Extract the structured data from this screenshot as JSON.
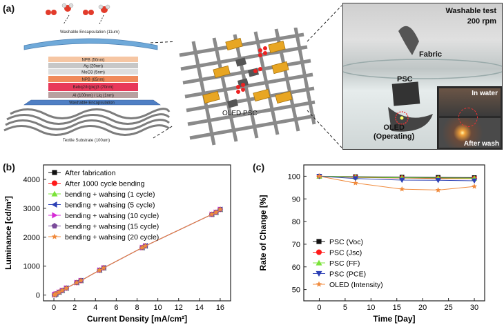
{
  "panels": {
    "a": {
      "label": "(a)",
      "stack": {
        "top_label": "Washable Encapsulation (11um)",
        "layers": [
          "NPB (50nm)",
          "Ag (20nm)",
          "MoO3 (5nm)",
          "NPB (65nm)",
          "Bebq2/Ir(piq)3 (70nm)",
          "Al (100nm) / Liq (1nm)",
          "Washable Encapsulation"
        ],
        "bottom_label": "Textile Substrate (100um)"
      },
      "textile_labels": {
        "oled": "OLED",
        "psc": "PSC"
      },
      "photo": {
        "title_line1": "Washable test",
        "title_line2": "200 rpm",
        "fabric": "Fabric",
        "psc": "PSC",
        "oled_line1": "OLED",
        "oled_line2": "(Operating)",
        "inset_in_water": "In water",
        "inset_after_wash": "After wash"
      }
    },
    "b": {
      "label": "(b)"
    },
    "c": {
      "label": "(c)"
    }
  },
  "chart_data": [
    {
      "type": "line",
      "panel": "b",
      "xlabel": "Current Density [mA/cm²]",
      "ylabel": "Luminance [cd/m²]",
      "xlim": [
        -1,
        17
      ],
      "ylim": [
        -200,
        4500
      ],
      "xticks": [
        0,
        2,
        4,
        6,
        8,
        10,
        12,
        14,
        16
      ],
      "yticks": [
        0,
        1000,
        2000,
        3000,
        4000
      ],
      "legend_position": "top-left",
      "x": [
        0.05,
        0.1,
        0.2,
        0.5,
        0.8,
        1.2,
        2.2,
        2.6,
        4.4,
        4.8,
        8.5,
        8.8,
        15.2,
        15.6,
        16.0
      ],
      "series": [
        {
          "name": "After fabrication",
          "color": "#111111",
          "marker": "square",
          "values": [
            10,
            20,
            40,
            100,
            160,
            240,
            430,
            500,
            860,
            940,
            1640,
            1700,
            2790,
            2860,
            2960
          ]
        },
        {
          "name": "After 1000 cycle bending",
          "color": "#ff1a1a",
          "marker": "circle",
          "values": [
            10,
            20,
            40,
            100,
            160,
            240,
            430,
            500,
            860,
            940,
            1640,
            1700,
            2790,
            2860,
            2960
          ]
        },
        {
          "name": "bending + wahsing (1 cycle)",
          "color": "#7be33a",
          "marker": "triangle-up",
          "values": [
            10,
            20,
            40,
            100,
            160,
            240,
            430,
            500,
            860,
            940,
            1640,
            1700,
            2790,
            2860,
            2960
          ]
        },
        {
          "name": "bending + wahsing (5 cycle)",
          "color": "#2b3fb5",
          "marker": "triangle-left",
          "values": [
            10,
            20,
            40,
            100,
            160,
            240,
            430,
            500,
            860,
            940,
            1640,
            1700,
            2790,
            2860,
            2960
          ]
        },
        {
          "name": "bending + wahsing (10 cycle)",
          "color": "#d62bd6",
          "marker": "triangle-right",
          "values": [
            10,
            20,
            40,
            100,
            160,
            240,
            430,
            500,
            860,
            940,
            1640,
            1700,
            2790,
            2860,
            2960
          ]
        },
        {
          "name": "bending + wahsing (15 cycle)",
          "color": "#7b4b9b",
          "marker": "pentagon",
          "values": [
            10,
            20,
            40,
            100,
            160,
            240,
            430,
            500,
            860,
            940,
            1640,
            1700,
            2790,
            2860,
            2960
          ]
        },
        {
          "name": "bending + wahsing (20 cycle)",
          "color": "#f08a3c",
          "marker": "star",
          "values": [
            10,
            20,
            40,
            100,
            160,
            240,
            430,
            500,
            860,
            940,
            1640,
            1700,
            2790,
            2860,
            2960
          ]
        }
      ]
    },
    {
      "type": "line",
      "panel": "c",
      "xlabel": "Time [Day]",
      "ylabel": "Rate of Change [%]",
      "xlim": [
        -3,
        32
      ],
      "ylim": [
        45,
        105
      ],
      "xticks": [
        0,
        5,
        10,
        15,
        20,
        25,
        30
      ],
      "yticks": [
        50,
        60,
        70,
        80,
        90,
        100
      ],
      "legend_position": "bottom-left",
      "x": [
        0,
        7,
        16,
        23,
        30
      ],
      "series": [
        {
          "name": "PSC (Voc)",
          "color": "#111111",
          "marker": "square",
          "values": [
            100,
            99.8,
            99.6,
            99.5,
            99.4
          ]
        },
        {
          "name": "PSC (Jsc)",
          "color": "#ff1a1a",
          "marker": "circle",
          "values": [
            100,
            99.5,
            99.2,
            99.0,
            99.0
          ]
        },
        {
          "name": "PSC (FF)",
          "color": "#7be33a",
          "marker": "triangle-up",
          "values": [
            100,
            99.6,
            99.3,
            99.2,
            99.1
          ]
        },
        {
          "name": "PSC (PCE)",
          "color": "#2b3fb5",
          "marker": "triangle-down",
          "values": [
            100,
            99.0,
            98.3,
            98.2,
            98.0
          ]
        },
        {
          "name": "OLED (Intensity)",
          "color": "#f08a3c",
          "marker": "star",
          "values": [
            100,
            97.0,
            94.3,
            93.9,
            95.5
          ]
        }
      ]
    }
  ]
}
